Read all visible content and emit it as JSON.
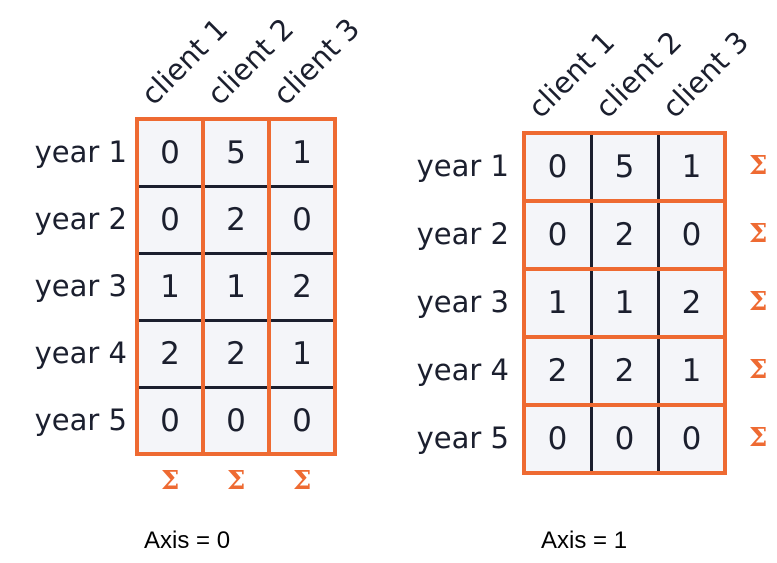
{
  "colors": {
    "accent": "#ee6a32",
    "ink": "#1b1f2e",
    "cell_bg": "#f4f5f9"
  },
  "sigma_symbol": "Σ",
  "clients": [
    "client 1",
    "client 2",
    "client 3"
  ],
  "years": [
    "year 1",
    "year 2",
    "year 3",
    "year 4",
    "year 5"
  ],
  "table": [
    [
      0,
      5,
      1
    ],
    [
      0,
      2,
      0
    ],
    [
      1,
      1,
      2
    ],
    [
      2,
      2,
      1
    ],
    [
      0,
      0,
      0
    ]
  ],
  "panels": [
    {
      "caption": "Axis = 0"
    },
    {
      "caption": "Axis = 1"
    }
  ]
}
